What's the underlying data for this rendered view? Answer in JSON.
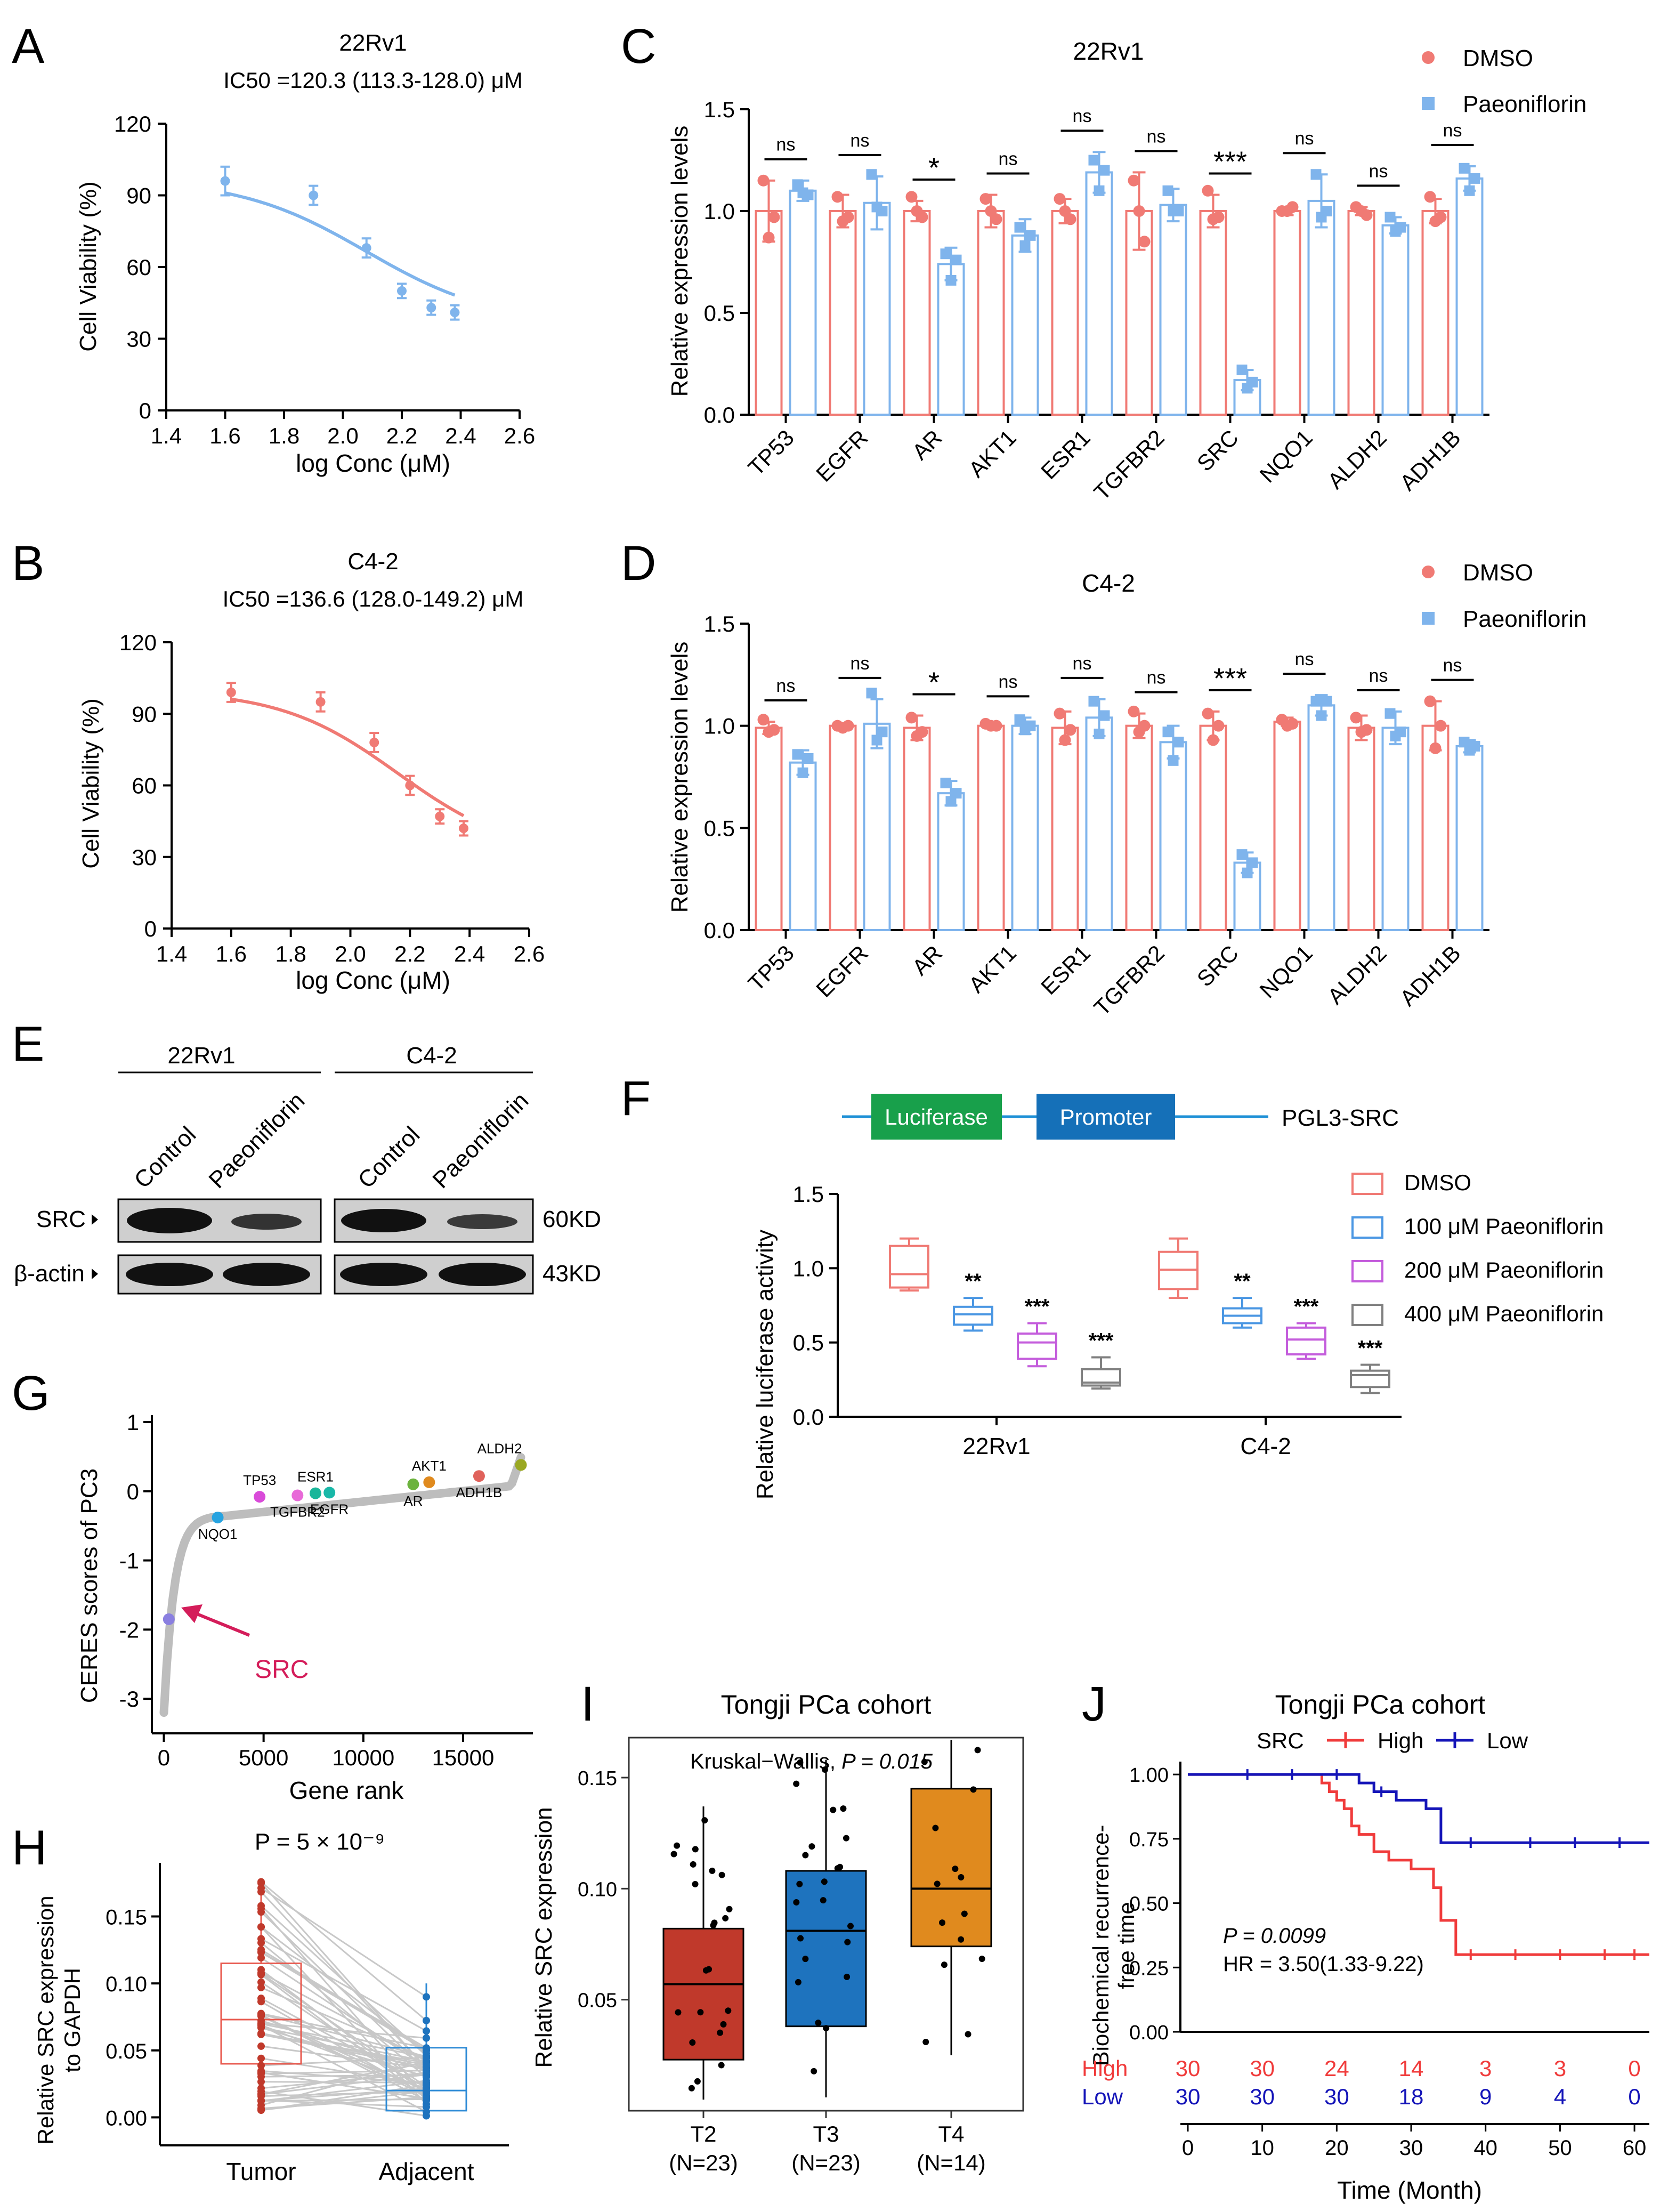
{
  "colors": {
    "red": "#f07a74",
    "blue": "#7fb4ec",
    "lred": "#f07a74",
    "lblue": "#4b97e3",
    "lpurple": "#c45ddc",
    "lgray": "#808080",
    "iT2": "#c0392b",
    "iT3": "#1e73be",
    "iT4": "#e08a1e",
    "jHigh": "#f03b3b",
    "jLow": "#1414b8",
    "wbBand": "#111111"
  },
  "panels": {
    "A": "A",
    "B": "B",
    "C": "C",
    "D": "D",
    "E": "E",
    "F": "F",
    "G": "G",
    "H": "H",
    "I": "I",
    "J": "J"
  },
  "chart_data": [
    {
      "id": "A",
      "type": "line",
      "title": "22Rv1",
      "subtitle": "IC50 =120.3 (113.3-128.0) μM",
      "xlabel": "log Conc (μM)",
      "ylabel": "Cell Viability (%)",
      "xlim": [
        1.4,
        2.6
      ],
      "ylim": [
        0,
        120
      ],
      "xticks": [
        "1.4",
        "1.6",
        "1.8",
        "2.0",
        "2.2",
        "2.4",
        "2.6"
      ],
      "yticks": [
        "0",
        "30",
        "60",
        "90",
        "120"
      ],
      "x": [
        1.6,
        1.9,
        2.08,
        2.2,
        2.3,
        2.38
      ],
      "y": [
        96,
        90,
        68,
        50,
        43,
        41
      ],
      "err": [
        6,
        4,
        4,
        3,
        3,
        3
      ],
      "fit": {
        "top": 97,
        "bottom": 36,
        "log_ic50": 2.08,
        "hill": -2.0
      },
      "color": "#7fb4ec"
    },
    {
      "id": "B",
      "type": "line",
      "title": "C4-2",
      "subtitle": "IC50 =136.6 (128.0-149.2) μM",
      "xlabel": "log Conc (μM)",
      "ylabel": "Cell Viability (%)",
      "xlim": [
        1.4,
        2.6
      ],
      "ylim": [
        0,
        120
      ],
      "xticks": [
        "1.4",
        "1.6",
        "1.8",
        "2.0",
        "2.2",
        "2.4",
        "2.6"
      ],
      "yticks": [
        "0",
        "30",
        "60",
        "90",
        "120"
      ],
      "x": [
        1.6,
        1.9,
        2.08,
        2.2,
        2.3,
        2.38
      ],
      "y": [
        99,
        95,
        78,
        60,
        47,
        42
      ],
      "err": [
        4,
        4,
        4,
        4,
        3,
        3
      ],
      "fit": {
        "top": 100,
        "bottom": 30,
        "log_ic50": 2.16,
        "hill": -2.2
      },
      "color": "#f07a74"
    },
    {
      "id": "C",
      "type": "bar",
      "title": "22Rv1",
      "ylabel": "Relative expression levels",
      "ylim": [
        0,
        1.5
      ],
      "yticks": [
        "0.0",
        "0.5",
        "1.0",
        "1.5"
      ],
      "categories": [
        "TP53",
        "EGFR",
        "AR",
        "AKT1",
        "ESR1",
        "TGFBR2",
        "SRC",
        "NQO1",
        "ALDH2",
        "ADH1B"
      ],
      "significance": [
        "ns",
        "ns",
        "*",
        "ns",
        "ns",
        "ns",
        "***",
        "ns",
        "ns",
        "ns"
      ],
      "legend": [
        "DMSO",
        "Paeoniflorin"
      ],
      "series": [
        {
          "name": "DMSO",
          "values": [
            1.0,
            1.0,
            1.0,
            1.0,
            1.0,
            1.0,
            1.0,
            1.0,
            1.0,
            1.0
          ],
          "err": [
            0.15,
            0.08,
            0.05,
            0.08,
            0.06,
            0.19,
            0.08,
            0.02,
            0.02,
            0.06
          ],
          "points": [
            [
              1.15,
              0.97,
              0.87
            ],
            [
              1.07,
              0.97,
              0.95
            ],
            [
              1.07,
              0.97,
              1.0
            ],
            [
              1.06,
              0.96,
              1.0
            ],
            [
              1.06,
              0.96,
              1.0
            ],
            [
              1.15,
              0.85,
              1.0
            ],
            [
              1.1,
              0.97,
              0.96
            ],
            [
              1.0,
              1.02,
              1.0
            ],
            [
              1.02,
              0.98,
              1.0
            ],
            [
              1.07,
              0.97,
              0.95
            ]
          ]
        },
        {
          "name": "Paeoniflorin",
          "values": [
            1.1,
            1.04,
            0.74,
            0.88,
            1.19,
            1.03,
            0.17,
            1.05,
            0.93,
            1.16
          ],
          "err": [
            0.05,
            0.13,
            0.08,
            0.08,
            0.1,
            0.08,
            0.05,
            0.13,
            0.04,
            0.06
          ],
          "points": [
            [
              1.13,
              1.08,
              1.09
            ],
            [
              1.18,
              1.0,
              1.02
            ],
            [
              0.79,
              0.76,
              0.66
            ],
            [
              0.92,
              0.88,
              0.83
            ],
            [
              1.25,
              1.2,
              1.1
            ],
            [
              1.1,
              1.0,
              1.0
            ],
            [
              0.22,
              0.16,
              0.13
            ],
            [
              1.18,
              1.0,
              0.97
            ],
            [
              0.97,
              0.92,
              0.9
            ],
            [
              1.21,
              1.16,
              1.1
            ]
          ]
        }
      ]
    },
    {
      "id": "D",
      "type": "bar",
      "title": "C4-2",
      "ylabel": "Relative expression levels",
      "ylim": [
        0,
        1.5
      ],
      "yticks": [
        "0.0",
        "0.5",
        "1.0",
        "1.5"
      ],
      "categories": [
        "TP53",
        "EGFR",
        "AR",
        "AKT1",
        "ESR1",
        "TGFBR2",
        "SRC",
        "NQO1",
        "ALDH2",
        "ADH1B"
      ],
      "significance": [
        "ns",
        "ns",
        "*",
        "ns",
        "ns",
        "ns",
        "***",
        "ns",
        "ns",
        "ns"
      ],
      "legend": [
        "DMSO",
        "Paeoniflorin"
      ],
      "series": [
        {
          "name": "DMSO",
          "values": [
            0.99,
            1.0,
            0.99,
            1.0,
            0.99,
            1.0,
            1.0,
            1.02,
            0.99,
            1.0
          ],
          "err": [
            0.03,
            0.01,
            0.06,
            0.01,
            0.08,
            0.06,
            0.07,
            0.02,
            0.06,
            0.12
          ],
          "points": [
            [
              1.03,
              0.98,
              0.97
            ],
            [
              1.0,
              1.0,
              0.99
            ],
            [
              1.04,
              0.97,
              0.95
            ],
            [
              1.01,
              1.0,
              1.0
            ],
            [
              1.06,
              0.98,
              0.93
            ],
            [
              1.07,
              1.0,
              0.97
            ],
            [
              1.06,
              1.0,
              0.93
            ],
            [
              1.03,
              1.01,
              1.0
            ],
            [
              1.04,
              0.98,
              0.97
            ],
            [
              1.12,
              1.0,
              0.89
            ]
          ]
        },
        {
          "name": "Paeoniflorin",
          "values": [
            0.82,
            1.01,
            0.67,
            1.0,
            1.04,
            0.92,
            0.33,
            1.1,
            0.99,
            0.9
          ],
          "err": [
            0.06,
            0.12,
            0.06,
            0.04,
            0.09,
            0.08,
            0.05,
            0.05,
            0.08,
            0.03
          ],
          "points": [
            [
              0.86,
              0.84,
              0.77
            ],
            [
              1.16,
              0.97,
              0.93
            ],
            [
              0.72,
              0.67,
              0.63
            ],
            [
              1.03,
              1.0,
              0.98
            ],
            [
              1.12,
              1.05,
              0.96
            ],
            [
              0.97,
              0.92,
              0.83
            ],
            [
              0.37,
              0.33,
              0.28
            ],
            [
              1.12,
              1.12,
              1.05
            ],
            [
              1.06,
              0.97,
              0.95
            ],
            [
              0.92,
              0.9,
              0.88
            ]
          ]
        }
      ]
    },
    {
      "id": "F",
      "type": "box",
      "ylabel": "Relative luciferase activity",
      "ylim": [
        0,
        1.5
      ],
      "yticks": [
        "0.0",
        "0.5",
        "1.0",
        "1.5"
      ],
      "categories": [
        "22Rv1",
        "C4-2"
      ],
      "construct": {
        "label1": "Luciferase",
        "label2": "Promoter",
        "name": "PGL3-SRC"
      },
      "legend": [
        "DMSO",
        "100 μM Paeoniflorin",
        "200 μM Paeoniflorin",
        "400 μM Paeoniflorin"
      ],
      "groups": [
        [
          {
            "min": 0.85,
            "q1": 0.87,
            "med": 0.96,
            "q3": 1.15,
            "max": 1.2,
            "sig": ""
          },
          {
            "min": 0.58,
            "q1": 0.62,
            "med": 0.69,
            "q3": 0.74,
            "max": 0.8,
            "sig": "**"
          },
          {
            "min": 0.34,
            "q1": 0.39,
            "med": 0.5,
            "q3": 0.56,
            "max": 0.63,
            "sig": "***"
          },
          {
            "min": 0.19,
            "q1": 0.21,
            "med": 0.23,
            "q3": 0.32,
            "max": 0.4,
            "sig": "***"
          }
        ],
        [
          {
            "min": 0.8,
            "q1": 0.86,
            "med": 0.99,
            "q3": 1.11,
            "max": 1.2,
            "sig": ""
          },
          {
            "min": 0.6,
            "q1": 0.63,
            "med": 0.68,
            "q3": 0.73,
            "max": 0.8,
            "sig": "**"
          },
          {
            "min": 0.39,
            "q1": 0.42,
            "med": 0.52,
            "q3": 0.6,
            "max": 0.63,
            "sig": "***"
          },
          {
            "min": 0.16,
            "q1": 0.2,
            "med": 0.28,
            "q3": 0.31,
            "max": 0.35,
            "sig": "***"
          }
        ]
      ]
    },
    {
      "id": "G",
      "type": "scatter",
      "xlabel": "Gene rank",
      "ylabel": "CERES scores of PC3",
      "xlim": [
        -600,
        18500
      ],
      "ylim": [
        -3.5,
        1.1
      ],
      "xticks": [
        "0",
        "5000",
        "10000",
        "15000"
      ],
      "yticks": [
        "1",
        "0",
        "-1",
        "-2",
        "-3"
      ],
      "annotation": "SRC",
      "genes": [
        {
          "name": "TP53",
          "x": 4800,
          "y": -0.08,
          "c": "#d94bd9"
        },
        {
          "name": "ESR1",
          "x": 7600,
          "y": -0.03,
          "c": "#1ab69a"
        },
        {
          "name": "TGFBR2",
          "x": 6700,
          "y": -0.06,
          "c": "#e86ad8"
        },
        {
          "name": "EGFR",
          "x": 8300,
          "y": -0.02,
          "c": "#19b8a8"
        },
        {
          "name": "NQO1",
          "x": 2700,
          "y": -0.38,
          "c": "#27a3e0"
        },
        {
          "name": "AKT1",
          "x": 13300,
          "y": 0.13,
          "c": "#e08a1e"
        },
        {
          "name": "AR",
          "x": 12500,
          "y": 0.1,
          "c": "#6cb33e"
        },
        {
          "name": "ADH1B",
          "x": 15800,
          "y": 0.22,
          "c": "#e0625b"
        },
        {
          "name": "ALDH2",
          "x": 17900,
          "y": 0.38,
          "c": "#9aa822"
        },
        {
          "name": "SRC",
          "x": 250,
          "y": -1.85,
          "c": "#8a7fe0"
        }
      ]
    },
    {
      "id": "H",
      "type": "box",
      "ylabel": "Relative SRC expression to GAPDH",
      "ylim": [
        -0.005,
        0.19
      ],
      "yticks": [
        "0.00",
        "0.05",
        "0.10",
        "0.15"
      ],
      "categories": [
        "Tumor",
        "Adjacent"
      ],
      "pvalue": "P = 5 × 10⁻⁹",
      "boxes": [
        {
          "min": 0.005,
          "q1": 0.04,
          "med": 0.073,
          "q3": 0.115,
          "max": 0.178
        },
        {
          "min": 0.0,
          "q1": 0.005,
          "med": 0.02,
          "q3": 0.052,
          "max": 0.1
        }
      ]
    },
    {
      "id": "I",
      "type": "box",
      "title": "Tongji PCa cohort",
      "ylabel": "Relative SRC expression",
      "ylim": [
        0.0,
        0.168
      ],
      "yticks": [
        "0.05",
        "0.10",
        "0.15"
      ],
      "categories": [
        "T2",
        "T3",
        "T4"
      ],
      "ns": [
        "(N=23)",
        "(N=23)",
        "(N=14)"
      ],
      "test": "Kruskal−Wallis, ",
      "ptext": "P = 0.015",
      "boxes": [
        {
          "min": 0.005,
          "q1": 0.023,
          "med": 0.057,
          "q3": 0.082,
          "max": 0.137
        },
        {
          "min": 0.006,
          "q1": 0.038,
          "med": 0.081,
          "q3": 0.108,
          "max": 0.158
        },
        {
          "min": 0.025,
          "q1": 0.074,
          "med": 0.1,
          "q3": 0.145,
          "max": 0.167
        }
      ]
    },
    {
      "id": "J",
      "type": "line",
      "title": "Tongji PCa cohort",
      "ylabel": "Biochemical recurrence-free time",
      "xlabel": "Time (Month)",
      "xlim": [
        -1,
        62
      ],
      "ylim": [
        0,
        1.05
      ],
      "xticks": [
        "0",
        "10",
        "20",
        "30",
        "40",
        "50",
        "60"
      ],
      "yticks": [
        "0.00",
        "0.25",
        "0.50",
        "0.75",
        "1.00"
      ],
      "legend": {
        "title": "SRC",
        "high": "High",
        "low": "Low"
      },
      "pvalue": "P = 0.0099",
      "hr": "HR = 3.50(1.33-9.22)",
      "risk": {
        "high_label": "High",
        "low_label": "Low",
        "high": [
          "30",
          "30",
          "24",
          "14",
          "3",
          "3",
          "0"
        ],
        "low": [
          "30",
          "30",
          "30",
          "18",
          "9",
          "4",
          "0"
        ]
      },
      "series": [
        {
          "name": "High",
          "steps": [
            [
              0,
              1.0
            ],
            [
              18,
              0.967
            ],
            [
              19,
              0.933
            ],
            [
              20,
              0.9
            ],
            [
              21,
              0.867
            ],
            [
              22,
              0.8
            ],
            [
              23,
              0.767
            ],
            [
              25,
              0.7
            ],
            [
              27,
              0.667
            ],
            [
              30,
              0.633
            ],
            [
              33,
              0.56
            ],
            [
              34,
              0.433
            ],
            [
              36,
              0.3
            ],
            [
              62,
              0.3
            ]
          ]
        },
        {
          "name": "Low",
          "steps": [
            [
              0,
              1.0
            ],
            [
              23,
              0.967
            ],
            [
              25,
              0.933
            ],
            [
              28,
              0.9
            ],
            [
              32,
              0.867
            ],
            [
              34,
              0.735
            ],
            [
              62,
              0.735
            ]
          ]
        }
      ]
    }
  ]
}
